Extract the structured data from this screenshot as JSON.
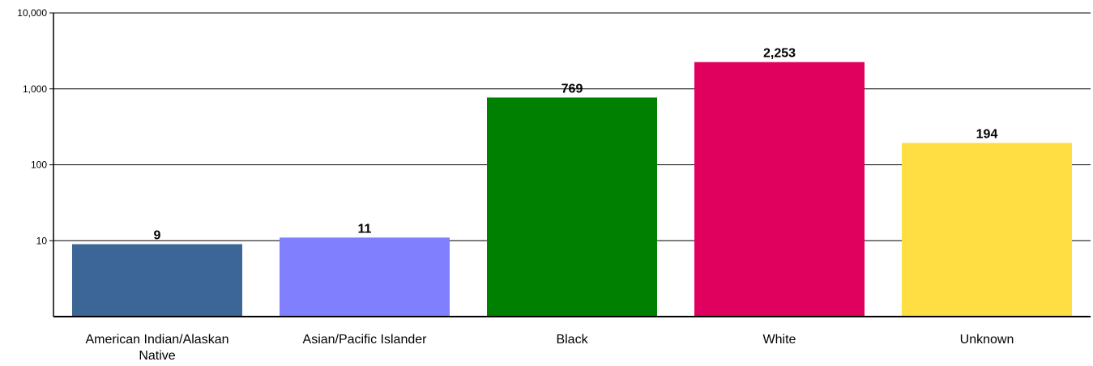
{
  "chart_data": {
    "type": "bar",
    "title": "",
    "xlabel": "",
    "ylabel": "",
    "yscale": "log",
    "ylim": [
      1,
      10000
    ],
    "yticks": [
      10,
      100,
      1000,
      10000
    ],
    "ytick_labels": [
      "10",
      "100",
      "1,000",
      "10,000"
    ],
    "grid": true,
    "categories": [
      [
        "American Indian/Alaskan",
        "Native"
      ],
      [
        "Asian/Pacific Islander"
      ],
      [
        "Black"
      ],
      [
        "White"
      ],
      [
        "Unknown"
      ]
    ],
    "values": [
      9,
      11,
      769,
      2253,
      194
    ],
    "value_labels": [
      "9",
      "11",
      "769",
      "2,253",
      "194"
    ],
    "colors": [
      "#3b6696",
      "#8080ff",
      "#008000",
      "#e0005e",
      "#ffde44"
    ]
  }
}
